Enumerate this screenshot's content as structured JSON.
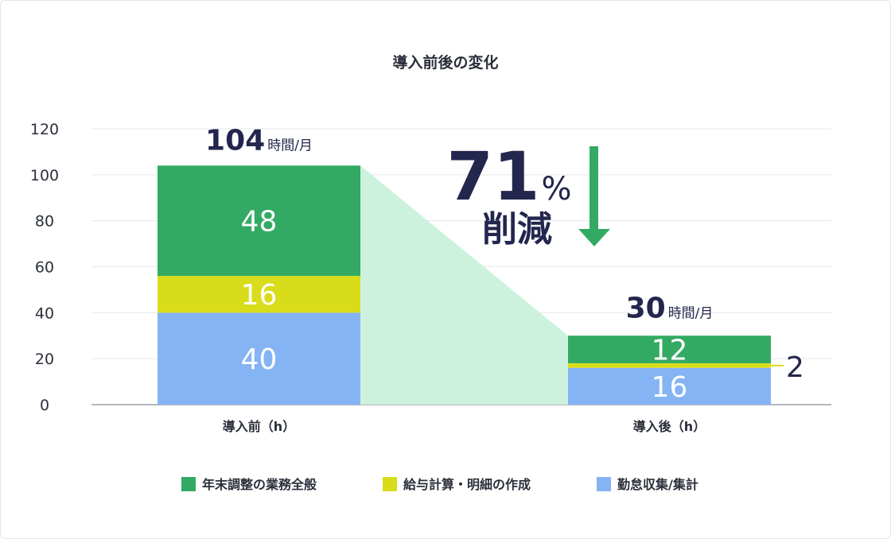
{
  "chart_data": {
    "type": "bar",
    "stacked": true,
    "title": "導入前後の変化",
    "categories": [
      "導入前（h）",
      "導入後（h）"
    ],
    "series": [
      {
        "name": "勤怠収集/集計",
        "values": [
          40,
          16
        ],
        "color": "#85b4f5"
      },
      {
        "name": "給与計算・明細の作成",
        "values": [
          16,
          2
        ],
        "color": "#d9dc1a"
      },
      {
        "name": "年末調整の業務全般",
        "values": [
          48,
          12
        ],
        "color": "#33aa63"
      }
    ],
    "totals": [
      {
        "value": "104",
        "unit": "時間/月"
      },
      {
        "value": "30",
        "unit": "時間/月"
      }
    ],
    "ylim": [
      0,
      120
    ],
    "yticks": [
      0,
      20,
      40,
      60,
      80,
      100,
      120
    ],
    "grid": true,
    "legend": "bottom",
    "annotation": {
      "number": "71",
      "percent": "%",
      "label": "削減",
      "color": "#33aa63"
    },
    "reduction_band_color": "#ccf2dd"
  }
}
